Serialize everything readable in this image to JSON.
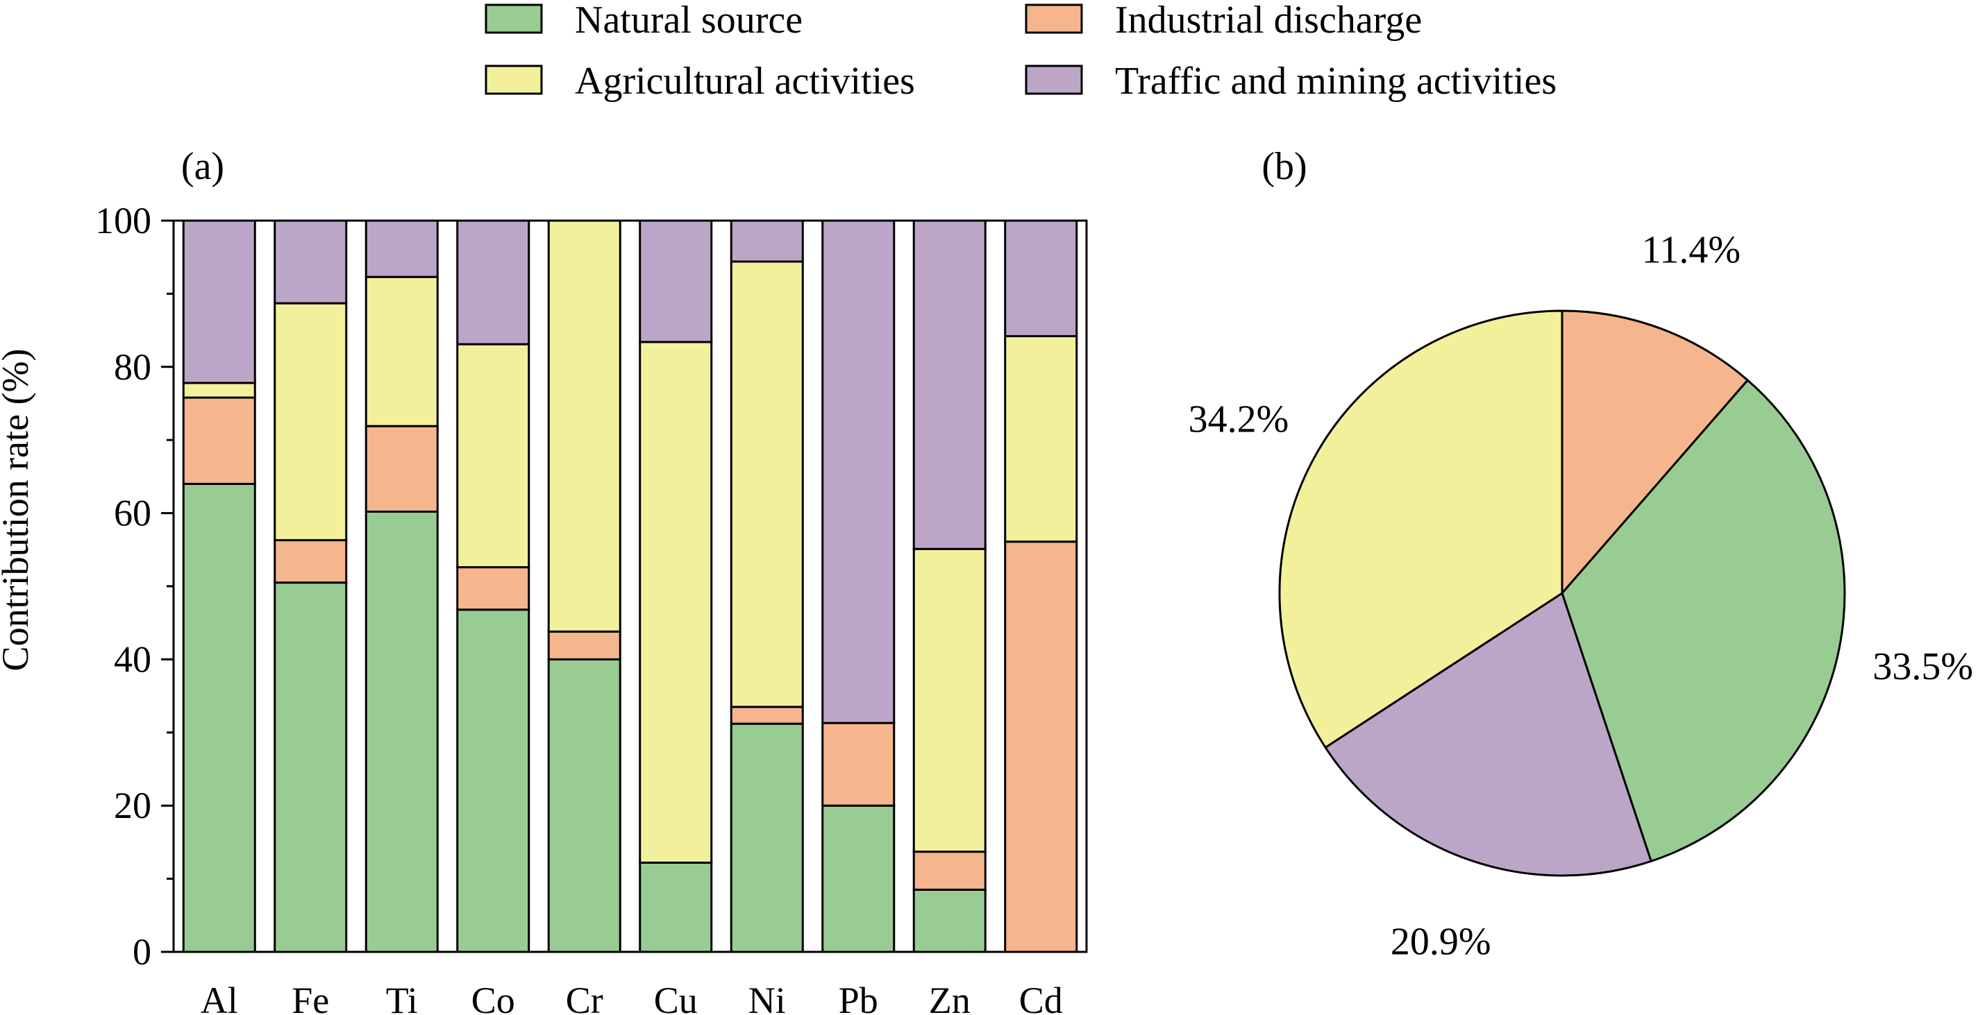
{
  "legend": [
    {
      "name": "Natural source",
      "color": "#99cc92"
    },
    {
      "name": "Industrial discharge",
      "color": "#f5b68d"
    },
    {
      "name": "Agricultural activities",
      "color": "#f2f09b"
    },
    {
      "name": "Traffic and mining activities",
      "color": "#bca6c8"
    }
  ],
  "chart_data": [
    {
      "type": "bar",
      "stacked": true,
      "panel": "(a)",
      "title": "",
      "xlabel": "",
      "ylabel": "Contribution rate (%)",
      "ylim": [
        0,
        100
      ],
      "yticks": [
        0,
        20,
        40,
        60,
        80,
        100
      ],
      "grid": false,
      "legend_position": "top",
      "categories": [
        "Al",
        "Fe",
        "Ti",
        "Co",
        "Cr",
        "Cu",
        "Ni",
        "Pb",
        "Zn",
        "Cd"
      ],
      "series": [
        {
          "name": "Natural source",
          "color": "#99cc92",
          "values": [
            64.0,
            50.5,
            60.2,
            46.8,
            40.0,
            12.2,
            31.2,
            20.0,
            8.5,
            0.0
          ]
        },
        {
          "name": "Industrial discharge",
          "color": "#f5b68d",
          "values": [
            11.8,
            5.8,
            11.7,
            5.8,
            3.8,
            0.0,
            2.3,
            11.3,
            5.2,
            56.1
          ]
        },
        {
          "name": "Agricultural activities",
          "color": "#f2f09b",
          "values": [
            2.0,
            32.4,
            20.4,
            30.5,
            56.2,
            71.2,
            60.9,
            0.0,
            41.4,
            28.1
          ]
        },
        {
          "name": "Traffic and mining activities",
          "color": "#bca6c8",
          "values": [
            22.2,
            11.3,
            7.7,
            16.9,
            0.0,
            16.6,
            5.6,
            68.7,
            44.9,
            15.8
          ]
        }
      ]
    },
    {
      "type": "pie",
      "panel": "(b)",
      "title": "",
      "slices": [
        {
          "name": "Industrial discharge",
          "value": 11.4,
          "label": "11.4%",
          "color": "#f5b68d"
        },
        {
          "name": "Natural source",
          "value": 33.5,
          "label": "33.5%",
          "color": "#99cc92"
        },
        {
          "name": "Traffic and mining activities",
          "value": 20.9,
          "label": "20.9%",
          "color": "#bca6c8"
        },
        {
          "name": "Agricultural activities",
          "value": 34.2,
          "label": "34.2%",
          "color": "#f2f09b"
        }
      ]
    }
  ]
}
